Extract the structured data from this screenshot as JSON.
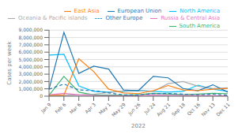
{
  "chart_data": {
    "type": "line",
    "xlabel": "2022",
    "ylabel": "Cases per week",
    "categories": [
      "Jan 9",
      "Feb 6",
      "Mar 6",
      "Apr 3",
      "May 1",
      "May 29",
      "Jun 26",
      "Jul 24",
      "Aug 21",
      "Sep 18",
      "Oct 16",
      "Nov 13",
      "Dec 11"
    ],
    "ylim": [
      0,
      9000000
    ],
    "yticks": [
      0,
      {
        "value": 1000000,
        "label": "1,000,000"
      },
      {
        "value": 2000000,
        "label": "2,000,000"
      },
      {
        "value": 3000000,
        "label": "3,000,000"
      },
      {
        "value": 4000000,
        "label": "4,000,000"
      },
      {
        "value": 5000000,
        "label": "5,000,000"
      },
      {
        "value": 6000000,
        "label": "6,000,000"
      },
      {
        "value": 7000000,
        "label": "7,000,000"
      },
      {
        "value": 8000000,
        "label": "8,000,000"
      },
      {
        "value": 9000000,
        "label": "9,000,000"
      }
    ],
    "grid": true,
    "legend": "upper right",
    "series": [
      {
        "name": "South America",
        "color": "#3cb371",
        "line_style": "solid",
        "values": [
          130000,
          2700000,
          550000,
          180000,
          150000,
          130000,
          200000,
          400000,
          300000,
          200000,
          280000,
          380000,
          350000
        ]
      },
      {
        "name": "North America",
        "color": "#00bfff",
        "line_style": "solid",
        "values": [
          5600000,
          5700000,
          1400000,
          650000,
          550000,
          650000,
          800000,
          650000,
          550000,
          650000,
          1500000,
          950000,
          650000
        ]
      },
      {
        "name": "Oceania & Pacific islands",
        "color": "#aaaaaa",
        "line_style": "solid",
        "values": [
          80000,
          120000,
          180000,
          250000,
          500000,
          700000,
          750000,
          650000,
          1700000,
          2000000,
          1350000,
          1050000,
          1150000
        ]
      },
      {
        "name": "European Union",
        "color": "#1f77b4",
        "line_style": "solid",
        "values": [
          950000,
          8700000,
          3100000,
          4100000,
          3700000,
          850000,
          750000,
          2700000,
          2500000,
          1050000,
          750000,
          1550000,
          550000
        ]
      },
      {
        "name": "Other Europe",
        "color": "#1f77b4",
        "line_style": "dashed",
        "values": [
          950000,
          1650000,
          850000,
          750000,
          450000,
          180000,
          170000,
          350000,
          370000,
          280000,
          180000,
          270000,
          130000
        ]
      },
      {
        "name": "Russia & Central Asia",
        "color": "#e377c2",
        "line_style": "solid",
        "values": [
          180000,
          380000,
          180000,
          90000,
          70000,
          50000,
          70000,
          180000,
          130000,
          90000,
          90000,
          70000,
          50000
        ]
      },
      {
        "name": "East Asia",
        "color": "#ff7f0e",
        "line_style": "solid",
        "values": [
          80000,
          170000,
          5100000,
          3350000,
          950000,
          450000,
          350000,
          750000,
          1450000,
          850000,
          750000,
          950000,
          1050000
        ]
      }
    ]
  }
}
